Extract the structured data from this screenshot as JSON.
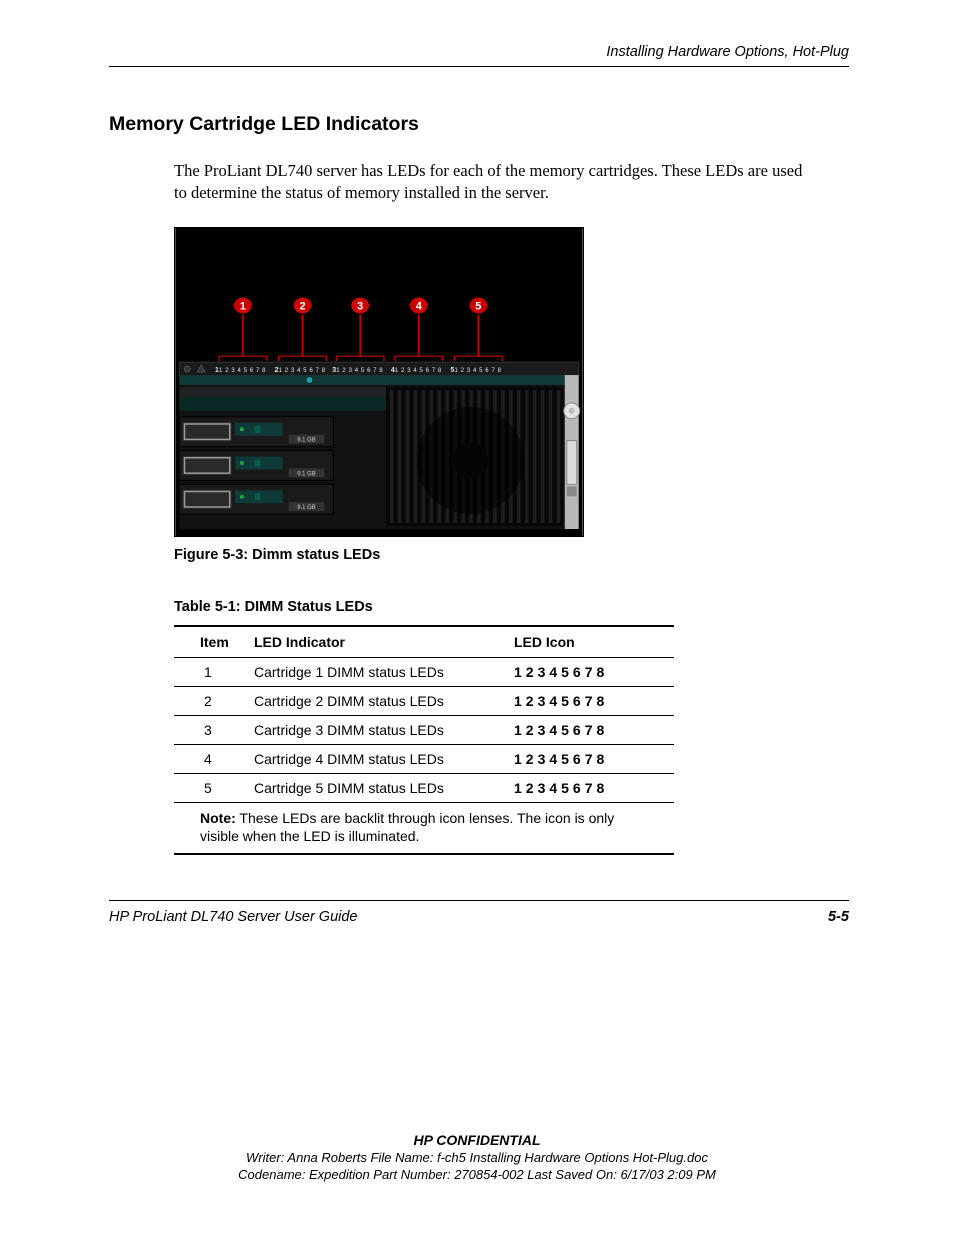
{
  "header": {
    "chapter_title": "Installing Hardware Options, Hot-Plug"
  },
  "section": {
    "title": "Memory Cartridge LED Indicators",
    "paragraph": "The ProLiant DL740 server has LEDs for each of the memory cartridges. These LEDs are used to determine the status of memory installed in the server."
  },
  "figure": {
    "caption": "Figure 5-3:  Dimm status LEDs",
    "callouts": [
      "1",
      "2",
      "3",
      "4",
      "5"
    ],
    "led_label": "1 2 3 4 5 6 7 8",
    "colors": {
      "bg_black": "#000000",
      "callout_red": "#cc0000",
      "panel_grey": "#4a4a4a",
      "dark_teal": "#0e3a38",
      "drive_grey": "#555555",
      "green_led": "#2aa04a",
      "silver": "#b8b8b8",
      "handle_grey": "#9a9a9a"
    }
  },
  "table": {
    "caption": "Table 5-1:  DIMM Status LEDs",
    "columns": [
      "Item",
      "LED Indicator",
      "LED Icon"
    ],
    "rows": [
      [
        "1",
        "Cartridge 1 DIMM status LEDs",
        "12345678"
      ],
      [
        "2",
        "Cartridge 2 DIMM status LEDs",
        "12345678"
      ],
      [
        "3",
        "Cartridge 3 DIMM status LEDs",
        "12345678"
      ],
      [
        "4",
        "Cartridge 4 DIMM status LEDs",
        "12345678"
      ],
      [
        "5",
        "Cartridge 5 DIMM status LEDs",
        "12345678"
      ]
    ],
    "note_label": "Note:",
    "note_text": "  These LEDs are backlit through icon lenses. The icon is only visible when the LED is illuminated."
  },
  "footer": {
    "doc_title": "HP ProLiant DL740 Server User Guide",
    "page_number": "5-5"
  },
  "confidential": {
    "line1": "HP CONFIDENTIAL",
    "line2": "Writer: Anna Roberts File Name: f-ch5 Installing Hardware Options Hot-Plug.doc",
    "line3": "Codename: Expedition Part Number: 270854-002 Last Saved On: 6/17/03 2:09 PM"
  }
}
